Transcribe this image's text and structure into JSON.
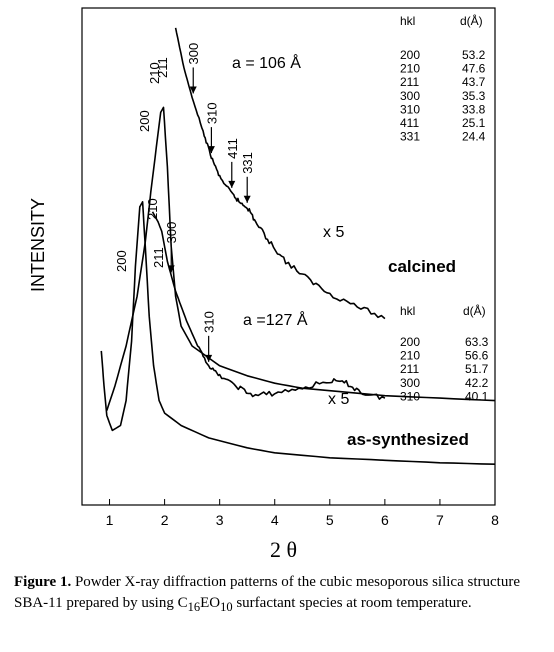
{
  "chart_data": {
    "type": "line",
    "xlabel": "2 θ",
    "ylabel": "INTENSITY",
    "xlim": [
      0.5,
      8
    ],
    "x_ticks": [
      "1",
      "2",
      "3",
      "4",
      "5",
      "6",
      "7",
      "8"
    ],
    "grid": false,
    "series": [
      {
        "name": "calcined",
        "points": [
          [
            0.95,
            19
          ],
          [
            1.1,
            24
          ],
          [
            1.3,
            32
          ],
          [
            1.5,
            42
          ],
          [
            1.65,
            53
          ],
          [
            1.75,
            63
          ],
          [
            1.85,
            72
          ],
          [
            1.93,
            79
          ],
          [
            1.98,
            80
          ],
          [
            2.05,
            68
          ],
          [
            2.12,
            52
          ],
          [
            2.2,
            42
          ],
          [
            2.3,
            36
          ],
          [
            2.5,
            32
          ],
          [
            3.0,
            28
          ],
          [
            3.5,
            26
          ],
          [
            4.0,
            24.5
          ],
          [
            4.5,
            23.5
          ],
          [
            5.0,
            23
          ],
          [
            5.5,
            22.5
          ],
          [
            6.0,
            22
          ],
          [
            7.0,
            21.5
          ],
          [
            8.0,
            21
          ]
        ]
      },
      {
        "name": "calcined x5",
        "points": [
          [
            2.2,
            96
          ],
          [
            2.35,
            88
          ],
          [
            2.5,
            82
          ],
          [
            2.7,
            75
          ],
          [
            2.85,
            70
          ],
          [
            3.0,
            66
          ],
          [
            3.2,
            63
          ],
          [
            3.35,
            61
          ],
          [
            3.5,
            60
          ],
          [
            3.65,
            57
          ],
          [
            3.9,
            53
          ],
          [
            4.2,
            49
          ],
          [
            4.6,
            45.5
          ],
          [
            5.0,
            42.5
          ],
          [
            5.5,
            40
          ],
          [
            6.0,
            37.5
          ]
        ]
      },
      {
        "name": "as-synthesized",
        "points": [
          [
            0.85,
            31
          ],
          [
            0.9,
            24
          ],
          [
            0.95,
            18
          ],
          [
            1.05,
            15
          ],
          [
            1.2,
            16
          ],
          [
            1.3,
            21
          ],
          [
            1.4,
            33
          ],
          [
            1.47,
            48
          ],
          [
            1.55,
            60
          ],
          [
            1.6,
            61
          ],
          [
            1.65,
            52
          ],
          [
            1.72,
            38
          ],
          [
            1.8,
            28
          ],
          [
            1.9,
            21
          ],
          [
            2.0,
            18.5
          ],
          [
            2.3,
            16
          ],
          [
            2.8,
            13.5
          ],
          [
            3.5,
            11.5
          ],
          [
            4.0,
            10.5
          ],
          [
            5.0,
            9.5
          ],
          [
            6.0,
            9
          ],
          [
            7.0,
            8.5
          ],
          [
            8.0,
            8.2
          ]
        ]
      },
      {
        "name": "as-synthesized x5",
        "points": [
          [
            1.78,
            59
          ],
          [
            1.88,
            57
          ],
          [
            1.95,
            55
          ],
          [
            2.05,
            49
          ],
          [
            2.2,
            43
          ],
          [
            2.4,
            37
          ],
          [
            2.6,
            32
          ],
          [
            2.8,
            28
          ],
          [
            3.0,
            26
          ],
          [
            3.3,
            24
          ],
          [
            3.6,
            22
          ],
          [
            4.0,
            22.5
          ],
          [
            4.5,
            23.5
          ],
          [
            5.0,
            25
          ],
          [
            5.3,
            24.5
          ],
          [
            5.6,
            22.5
          ],
          [
            6.0,
            21.5
          ]
        ]
      }
    ],
    "annotations": {
      "calcined_label": "calcined",
      "as_synthesized_label": "as-synthesized",
      "scale_calcined": "x 5",
      "scale_as_synthesized": "x 5",
      "lattice_calcined": "a = 106 Å",
      "lattice_as_synthesized": "a =127 Å",
      "peak_labels_calcined": [
        {
          "hkl": "200",
          "x": 1.75
        },
        {
          "hkl": "210",
          "x": 1.92
        },
        {
          "hkl": "211",
          "x": 2.05
        }
      ],
      "arrow_labels_calcined": [
        {
          "hkl": "300",
          "x": 2.52,
          "y": 82
        },
        {
          "hkl": "310",
          "x": 2.85,
          "y": 70
        },
        {
          "hkl": "411",
          "x": 3.22,
          "y": 63
        },
        {
          "hkl": "331",
          "x": 3.5,
          "y": 60
        }
      ],
      "peak_labels_as_synthesized": [
        {
          "hkl": "200",
          "x": 1.45
        },
        {
          "hkl": "210",
          "x": 1.9
        },
        {
          "hkl": "211",
          "x": 2.0
        }
      ],
      "arrow_labels_as_synthesized": [
        {
          "hkl": "300",
          "x": 2.12,
          "y": 46
        },
        {
          "hkl": "310",
          "x": 2.8,
          "y": 28
        }
      ]
    },
    "tables": [
      {
        "headers": [
          "hkl",
          "d(Å)"
        ],
        "rows": [
          [
            "200",
            "53.2"
          ],
          [
            "210",
            "47.6"
          ],
          [
            "211",
            "43.7"
          ],
          [
            "300",
            "35.3"
          ],
          [
            "310",
            "33.8"
          ],
          [
            "411",
            "25.1"
          ],
          [
            "331",
            "24.4"
          ]
        ]
      },
      {
        "headers": [
          "hkl",
          "d(Å)"
        ],
        "rows": [
          [
            "200",
            "63.3"
          ],
          [
            "210",
            "56.6"
          ],
          [
            "211",
            "51.7"
          ],
          [
            "300",
            "42.2"
          ],
          [
            "310",
            "40.1"
          ]
        ]
      }
    ]
  },
  "caption": {
    "label": "Figure 1.",
    "text": " Powder X-ray diffraction patterns of the cubic mesoporous silica structure SBA-11 prepared by using C",
    "sub1": "16",
    "mid": "EO",
    "sub2": "10",
    "tail": " surfactant species at room temperature."
  }
}
